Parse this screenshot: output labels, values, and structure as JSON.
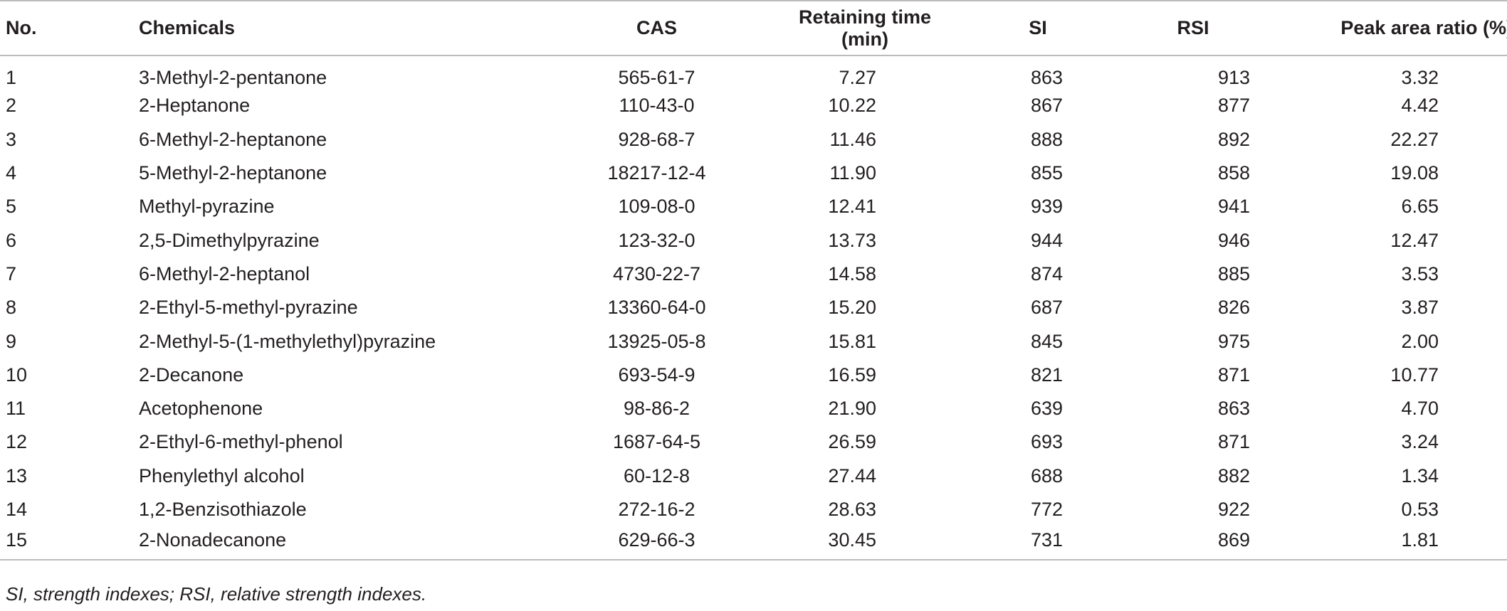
{
  "table": {
    "headers": {
      "no": "No.",
      "chemicals": "Chemicals",
      "cas": "CAS",
      "retaining_time": "Retaining time (min)",
      "si": "SI",
      "rsi": "RSI",
      "peak_area_ratio": "Peak area ratio (%)"
    },
    "rows": [
      {
        "no": "1",
        "chemical": "3-Methyl-2-pentanone",
        "cas": "565-61-7",
        "rt": "7.27",
        "si": "863",
        "rsi": "913",
        "peak": "3.32"
      },
      {
        "no": "2",
        "chemical": "2-Heptanone",
        "cas": "110-43-0",
        "rt": "10.22",
        "si": "867",
        "rsi": "877",
        "peak": "4.42"
      },
      {
        "no": "3",
        "chemical": "6-Methyl-2-heptanone",
        "cas": "928-68-7",
        "rt": "11.46",
        "si": "888",
        "rsi": "892",
        "peak": "22.27"
      },
      {
        "no": "4",
        "chemical": "5-Methyl-2-heptanone",
        "cas": "18217-12-4",
        "rt": "11.90",
        "si": "855",
        "rsi": "858",
        "peak": "19.08"
      },
      {
        "no": "5",
        "chemical": "Methyl-pyrazine",
        "cas": "109-08-0",
        "rt": "12.41",
        "si": "939",
        "rsi": "941",
        "peak": "6.65"
      },
      {
        "no": "6",
        "chemical": "2,5-Dimethylpyrazine",
        "cas": "123-32-0",
        "rt": "13.73",
        "si": "944",
        "rsi": "946",
        "peak": "12.47"
      },
      {
        "no": "7",
        "chemical": "6-Methyl-2-heptanol",
        "cas": "4730-22-7",
        "rt": "14.58",
        "si": "874",
        "rsi": "885",
        "peak": "3.53"
      },
      {
        "no": "8",
        "chemical": "2-Ethyl-5-methyl-pyrazine",
        "cas": "13360-64-0",
        "rt": "15.20",
        "si": "687",
        "rsi": "826",
        "peak": "3.87"
      },
      {
        "no": "9",
        "chemical": "2-Methyl-5-(1-methylethyl)pyrazine",
        "cas": "13925-05-8",
        "rt": "15.81",
        "si": "845",
        "rsi": "975",
        "peak": "2.00"
      },
      {
        "no": "10",
        "chemical": "2-Decanone",
        "cas": "693-54-9",
        "rt": "16.59",
        "si": "821",
        "rsi": "871",
        "peak": "10.77"
      },
      {
        "no": "11",
        "chemical": "Acetophenone",
        "cas": "98-86-2",
        "rt": "21.90",
        "si": "639",
        "rsi": "863",
        "peak": "4.70"
      },
      {
        "no": "12",
        "chemical": "2-Ethyl-6-methyl-phenol",
        "cas": "1687-64-5",
        "rt": "26.59",
        "si": "693",
        "rsi": "871",
        "peak": "3.24"
      },
      {
        "no": "13",
        "chemical": "Phenylethyl alcohol",
        "cas": "60-12-8",
        "rt": "27.44",
        "si": "688",
        "rsi": "882",
        "peak": "1.34"
      },
      {
        "no": "14",
        "chemical": "1,2-Benzisothiazole",
        "cas": "272-16-2",
        "rt": "28.63",
        "si": "772",
        "rsi": "922",
        "peak": "0.53"
      },
      {
        "no": "15",
        "chemical": "2-Nonadecanone",
        "cas": "629-66-3",
        "rt": "30.45",
        "si": "731",
        "rsi": "869",
        "peak": "1.81"
      }
    ]
  },
  "footnote": "SI, strength indexes; RSI, relative strength indexes."
}
